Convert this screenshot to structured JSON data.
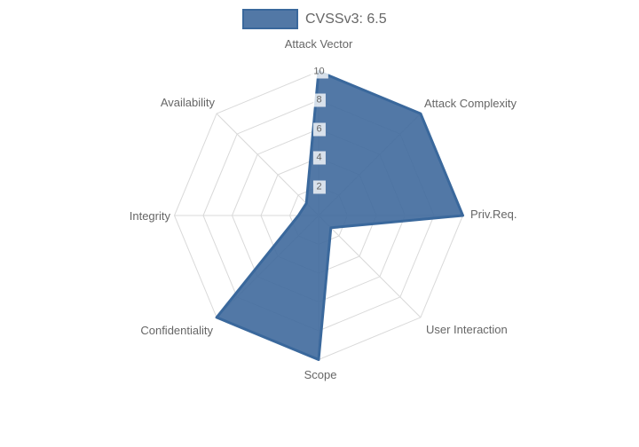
{
  "page": {
    "background": "#ffffff"
  },
  "legend": {
    "label": "CVSSv3: 6.5",
    "swatch_fill": "rgba(63,105,156,0.9)",
    "swatch_border": "#3a689c"
  },
  "chart_data": {
    "type": "radar",
    "title": "CVSSv3: 6.5",
    "categories": [
      "Attack Vector",
      "Attack Complexity",
      "Priv.Req.",
      "User Interaction",
      "Scope",
      "Confidentiality",
      "Integrity",
      "Availability"
    ],
    "series": [
      {
        "name": "CVSSv3: 6.5",
        "values": [
          10,
          10,
          10,
          1.2,
          10,
          10,
          1.4,
          1.2
        ]
      }
    ],
    "rmin": 0,
    "rmax": 10,
    "ticks": [
      2,
      4,
      6,
      8,
      10
    ],
    "grid": true,
    "legend_position": "top",
    "colors": {
      "fill": "rgba(63,105,156,0.9)",
      "stroke": "#3a689c",
      "grid": "#d9d9d9",
      "label": "#666666",
      "tick": "#666666",
      "tick_backdrop": "rgba(255,255,255,0.78)"
    }
  }
}
